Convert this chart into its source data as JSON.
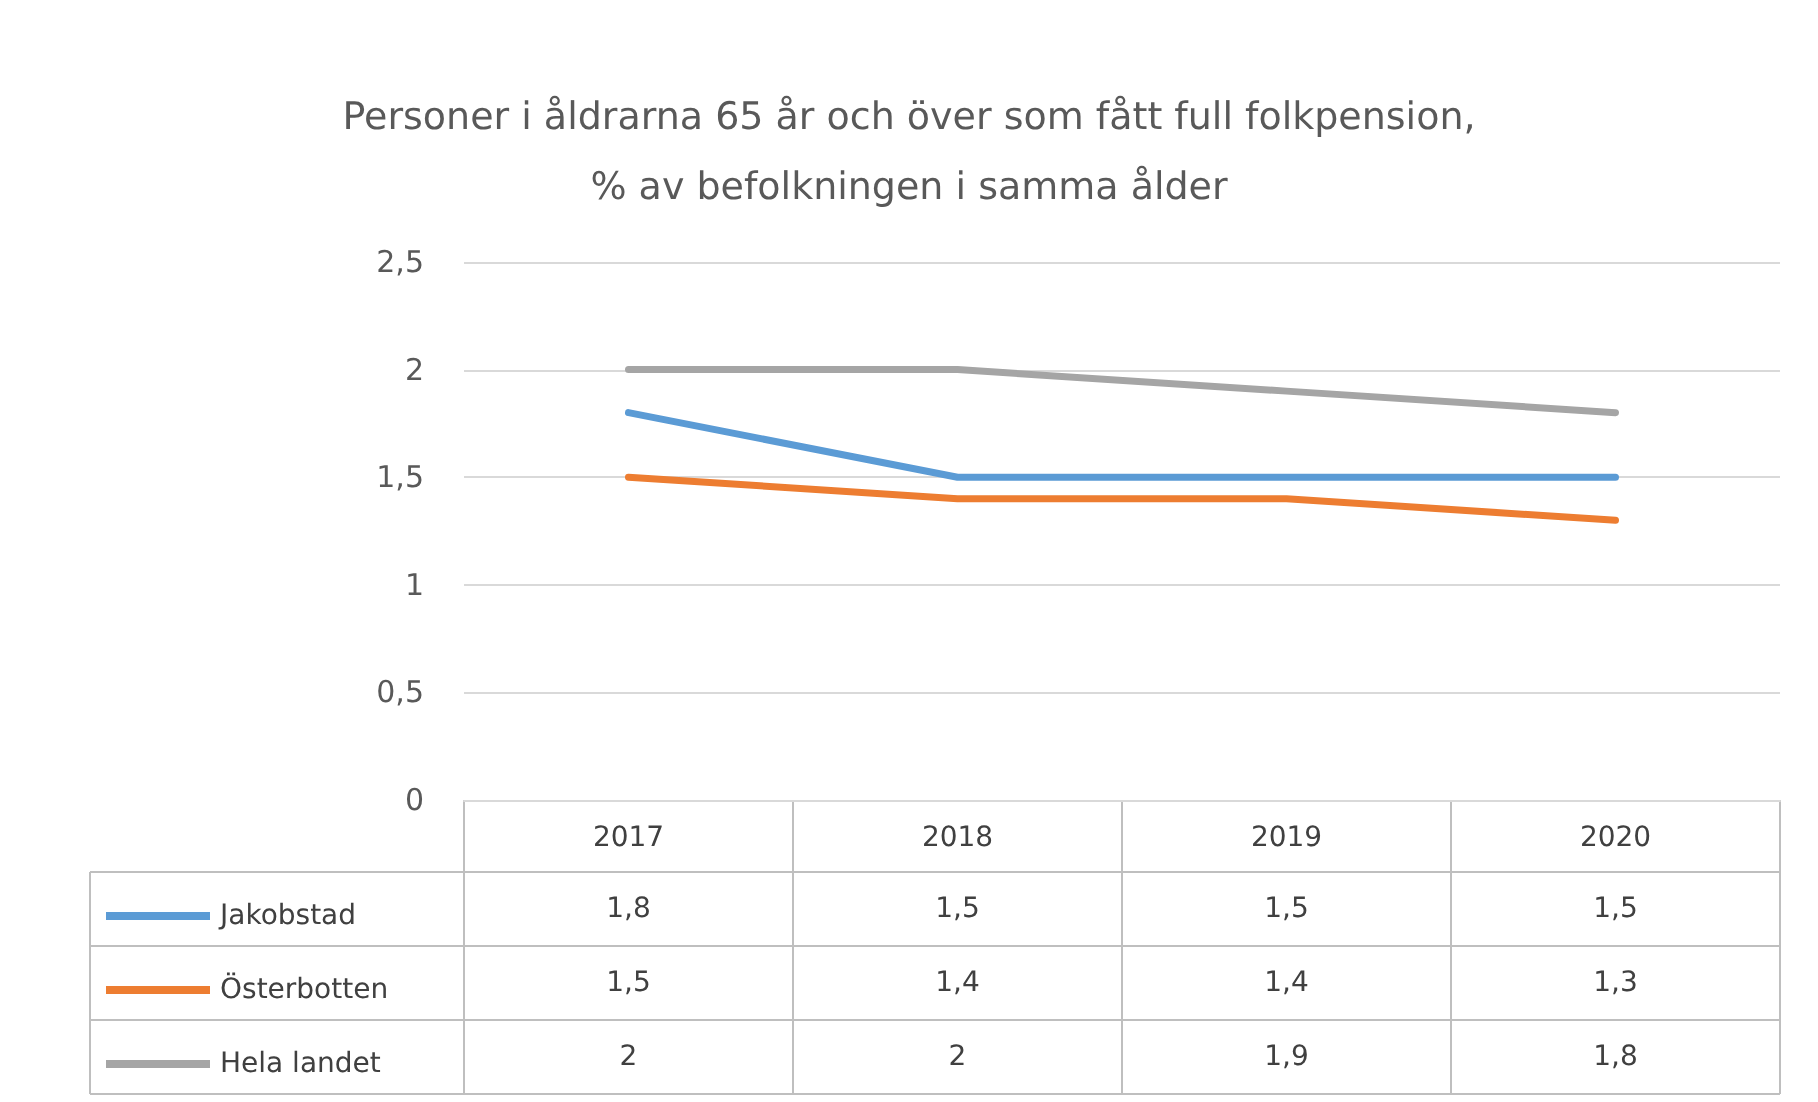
{
  "chart_data": {
    "type": "line",
    "title": "Personer i åldrarna 65 år och över som fått full folkpension,\n% av befolkningen i samma ålder",
    "categories": [
      "2017",
      "2018",
      "2019",
      "2020"
    ],
    "series": [
      {
        "name": "Jakobstad",
        "color": "#5b9bd5",
        "values": [
          1.8,
          1.5,
          1.5,
          1.5
        ],
        "value_labels": [
          "1,8",
          "1,5",
          "1,5",
          "1,5"
        ]
      },
      {
        "name": "Österbotten",
        "color": "#ed7d31",
        "values": [
          1.5,
          1.4,
          1.4,
          1.3
        ],
        "value_labels": [
          "1,5",
          "1,4",
          "1,4",
          "1,3"
        ]
      },
      {
        "name": "Hela landet",
        "color": "#a5a5a5",
        "values": [
          2,
          2,
          1.9,
          1.8
        ],
        "value_labels": [
          "2",
          "2",
          "1,9",
          "1,8"
        ]
      }
    ],
    "ylim": [
      0,
      2.5
    ],
    "yticks": [
      0,
      {
        "value": 0.5,
        "label": "0,5"
      },
      1,
      {
        "value": 1.5,
        "label": "1,5"
      },
      2,
      {
        "value": 2.5,
        "label": "2,5"
      }
    ],
    "grid": "y",
    "legend": "bottom left",
    "marker": "none",
    "line_style": "solid"
  }
}
